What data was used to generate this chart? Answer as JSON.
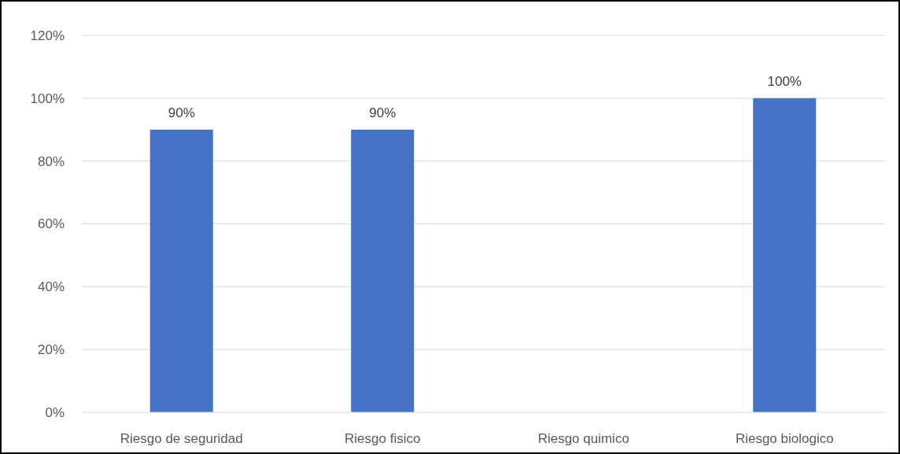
{
  "chart_data": {
    "type": "bar",
    "categories": [
      "Riesgo de seguridad",
      "Riesgo fisico",
      "Riesgo quimico",
      "Riesgo biologico"
    ],
    "values": [
      90,
      90,
      null,
      100
    ],
    "color": "#4472c4",
    "value_labels": [
      "90%",
      "90%",
      null,
      "100%"
    ],
    "ylim": [
      0,
      120
    ],
    "yticks": [
      {
        "value": 0,
        "label": "0%"
      },
      {
        "value": 20,
        "label": "20%"
      },
      {
        "value": 40,
        "label": "40%"
      },
      {
        "value": 60,
        "label": "60%"
      },
      {
        "value": 80,
        "label": "80%"
      },
      {
        "value": 100,
        "label": "100%"
      },
      {
        "value": 120,
        "label": "120%"
      }
    ],
    "grid": "y"
  }
}
